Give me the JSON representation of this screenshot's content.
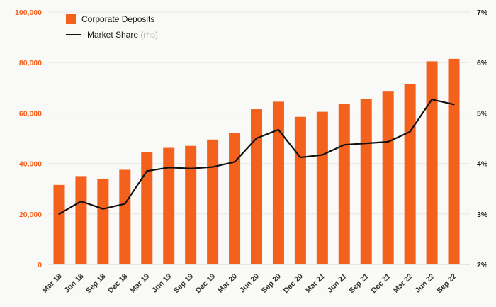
{
  "chart_data": {
    "type": "bar",
    "title": "",
    "categories": [
      "Mar 18",
      "Jun 18",
      "Sep 18",
      "Dec 18",
      "Mar 19",
      "Jun 19",
      "Sep 19",
      "Dec 19",
      "Mar 20",
      "Jun 20",
      "Sep 20",
      "Dec 20",
      "Mar 21",
      "Jun 21",
      "Sep 21",
      "Dec 21",
      "Mar 22",
      "Jun 22",
      "Sep 22"
    ],
    "series": [
      {
        "name": "Corporate Deposits",
        "type": "bar",
        "axis": "left",
        "color": "#f4611d",
        "values": [
          31500,
          35000,
          34000,
          37500,
          44500,
          46200,
          47000,
          49500,
          52000,
          61500,
          64500,
          58500,
          60500,
          63500,
          65500,
          68500,
          71500,
          80500,
          81500
        ]
      },
      {
        "name": "Market Share",
        "type": "line",
        "axis": "right",
        "color": "#111111",
        "values": [
          3.0,
          3.25,
          3.1,
          3.2,
          3.85,
          3.92,
          3.9,
          3.93,
          4.03,
          4.5,
          4.67,
          4.12,
          4.17,
          4.37,
          4.4,
          4.43,
          4.63,
          5.27,
          5.17
        ]
      }
    ],
    "left_axis": {
      "min": 0,
      "max": 100000,
      "tick_values": [
        0,
        20000,
        40000,
        60000,
        80000,
        100000
      ],
      "tick_labels": [
        "0",
        "20,000",
        "40,000",
        "60,000",
        "80,000",
        "100,000"
      ],
      "color": "#f4611d"
    },
    "right_axis": {
      "min": 2,
      "max": 7,
      "tick_values": [
        2,
        3,
        4,
        5,
        6,
        7
      ],
      "tick_labels": [
        "2%",
        "3%",
        "4%",
        "5%",
        "6%",
        "7%"
      ],
      "color": "#1a1a1a"
    },
    "grid": true,
    "legend_position": "top-left",
    "background": "#f9f9f7",
    "grid_color": "#e7e7e4",
    "baseline_color": "#d8d8d4",
    "xlabel_color": "#333333"
  },
  "legend": {
    "items": [
      {
        "label": "Corporate Deposits",
        "suffix": ""
      },
      {
        "label": "Market Share",
        "suffix": "(rhs)"
      }
    ]
  }
}
